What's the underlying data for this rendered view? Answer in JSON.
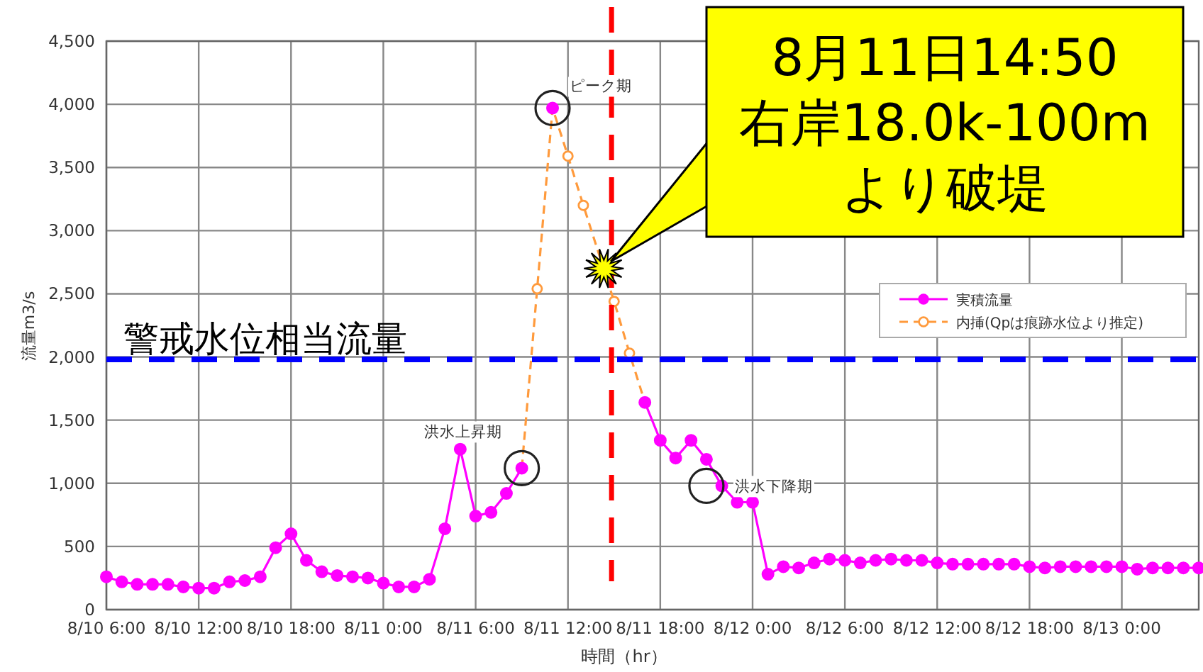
{
  "chart_data": {
    "type": "line",
    "xlabel": "時間（hr）",
    "ylabel": "流量m3/s",
    "xlim": [
      "--08-10T06:00",
      "--08-13T05:00"
    ],
    "ylim": [
      0,
      4500
    ],
    "xticks": [
      {
        "value": "--08-10T06:00",
        "label": "8/10 6:00"
      },
      {
        "value": "--08-10T12:00",
        "label": "8/10 12:00"
      },
      {
        "value": "--08-10T18:00",
        "label": "8/10 18:00"
      },
      {
        "value": "--08-11T00:00",
        "label": "8/11 0:00"
      },
      {
        "value": "--08-11T06:00",
        "label": "8/11 6:00"
      },
      {
        "value": "--08-11T12:00",
        "label": "8/11 12:00"
      },
      {
        "value": "--08-11T18:00",
        "label": "8/11 18:00"
      },
      {
        "value": "--08-12T00:00",
        "label": "8/12 0:00"
      },
      {
        "value": "--08-12T06:00",
        "label": "8/12 6:00"
      },
      {
        "value": "--08-12T12:00",
        "label": "8/12 12:00"
      },
      {
        "value": "--08-12T18:00",
        "label": "8/12 18:00"
      },
      {
        "value": "--08-13T00:00",
        "label": "8/13 0:00"
      }
    ],
    "yticks": [
      {
        "value": 0,
        "label": "0"
      },
      {
        "value": 500,
        "label": "500"
      },
      {
        "value": 1000,
        "label": "1,000"
      },
      {
        "value": 1500,
        "label": "1,500"
      },
      {
        "value": 2000,
        "label": "2,000"
      },
      {
        "value": 2500,
        "label": "2,500"
      },
      {
        "value": 3000,
        "label": "3,000"
      },
      {
        "value": 3500,
        "label": "3,500"
      },
      {
        "value": 4000,
        "label": "4,000"
      },
      {
        "value": 4500,
        "label": "4,500"
      }
    ],
    "grid": true,
    "legend": "right",
    "marker": "circle",
    "series": [
      {
        "name": "実積流量",
        "color": "#ff00ff",
        "line_style": "solid",
        "x": [
          "--08-10T06:00",
          "--08-10T07:00",
          "--08-10T08:00",
          "--08-10T09:00",
          "--08-10T10:00",
          "--08-10T11:00",
          "--08-10T12:00",
          "--08-10T13:00",
          "--08-10T14:00",
          "--08-10T15:00",
          "--08-10T16:00",
          "--08-10T17:00",
          "--08-10T18:00",
          "--08-10T19:00",
          "--08-10T20:00",
          "--08-10T21:00",
          "--08-10T22:00",
          "--08-10T23:00",
          "--08-11T00:00",
          "--08-11T01:00",
          "--08-11T02:00",
          "--08-11T03:00",
          "--08-11T04:00",
          "--08-11T05:00",
          "--08-11T06:00",
          "--08-11T07:00",
          "--08-11T08:00",
          "--08-11T09:00",
          "--08-11T10:00",
          "--08-11T11:00",
          "--08-11T12:00",
          "--08-11T17:00",
          "--08-11T18:00",
          "--08-11T19:00",
          "--08-11T20:00",
          "--08-11T21:00",
          "--08-11T22:00",
          "--08-11T23:00",
          "--08-12T00:00",
          "--08-12T01:00",
          "--08-12T02:00",
          "--08-12T03:00",
          "--08-12T04:00",
          "--08-12T05:00",
          "--08-12T06:00",
          "--08-12T07:00",
          "--08-12T08:00",
          "--08-12T09:00",
          "--08-12T10:00",
          "--08-12T11:00",
          "--08-12T12:00",
          "--08-12T13:00",
          "--08-12T14:00",
          "--08-12T15:00",
          "--08-12T16:00",
          "--08-12T17:00",
          "--08-12T18:00",
          "--08-12T19:00",
          "--08-12T20:00",
          "--08-12T21:00",
          "--08-12T22:00",
          "--08-12T23:00",
          "--08-13T00:00",
          "--08-13T01:00",
          "--08-13T02:00",
          "--08-13T03:00",
          "--08-13T04:00",
          "--08-13T05:00"
        ],
        "values": [
          260,
          220,
          200,
          200,
          200,
          180,
          170,
          170,
          220,
          230,
          260,
          490,
          600,
          390,
          300,
          270,
          260,
          250,
          210,
          180,
          180,
          240,
          640,
          1270,
          740,
          770,
          920,
          1120,
          null,
          3970,
          null,
          1640,
          1340,
          1200,
          1340,
          1190,
          980,
          850,
          850,
          280,
          340,
          330,
          370,
          400,
          390,
          370,
          390,
          400,
          390,
          390,
          370,
          360,
          360,
          360,
          360,
          360,
          340,
          330,
          340,
          340,
          340,
          340,
          340,
          320,
          330,
          330,
          330,
          330
        ]
      },
      {
        "name": "内挿(Qpは痕跡水位より推定)",
        "color": "#ff9a3c",
        "line_style": "dashed",
        "x": [
          "--08-11T09:00",
          "--08-11T10:00",
          "--08-11T11:00",
          "--08-11T12:00",
          "--08-11T13:00",
          "--08-11T15:00",
          "--08-11T16:00",
          "--08-11T17:00"
        ],
        "values": [
          1120,
          2540,
          3970,
          3590,
          3200,
          2440,
          2030,
          1640
        ]
      }
    ],
    "ref_lines": [
      {
        "axis": "y",
        "value": 1980,
        "label": "警戒水位相当流量",
        "color": "#0000ff",
        "line_style": "dashed"
      },
      {
        "axis": "x",
        "value": "--08-11T14:50",
        "label": null,
        "color": "#ff0000",
        "line_style": "dashed"
      }
    ],
    "annotations": [
      {
        "text": "ピーク期",
        "x": "--08-11T11:00",
        "y": 3970
      },
      {
        "text": "洪水上昇期",
        "x": "--08-11T09:00",
        "y": 1120
      },
      {
        "text": "洪水下降期",
        "x": "--08-11T21:00",
        "y": 980
      },
      {
        "text": "8月11日14:50\n右岸18.0k-100m\nより破堤",
        "x": "--08-11T14:20",
        "y": 2700
      }
    ]
  }
}
